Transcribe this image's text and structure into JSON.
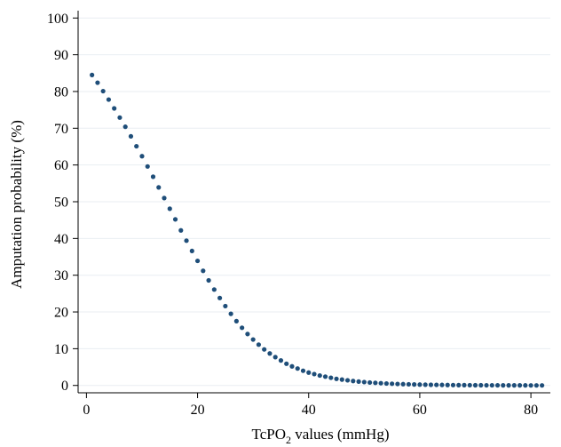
{
  "chart_data": {
    "type": "scatter",
    "xlabel_main": "TcPO",
    "xlabel_sub": "2",
    "xlabel_tail": " values (mmHg)",
    "ylabel": "Amputation probability (%)",
    "xlim": [
      -1.5,
      83.5
    ],
    "ylim": [
      -2,
      102
    ],
    "xticks": [
      0,
      20,
      40,
      60,
      80
    ],
    "yticks": [
      0,
      10,
      20,
      30,
      40,
      50,
      60,
      70,
      80,
      90,
      100
    ],
    "grid": true,
    "marker_color": "#1f4e79",
    "gridline_color": "#e9eef2",
    "series": [
      {
        "points": [
          [
            1,
            84.5
          ],
          [
            2,
            82.4
          ],
          [
            3,
            80.1
          ],
          [
            4,
            77.8
          ],
          [
            5,
            75.4
          ],
          [
            6,
            72.9
          ],
          [
            7,
            70.4
          ],
          [
            8,
            67.8
          ],
          [
            9,
            65.1
          ],
          [
            10,
            62.4
          ],
          [
            11,
            59.6
          ],
          [
            12,
            56.8
          ],
          [
            13,
            53.9
          ],
          [
            14,
            51.0
          ],
          [
            15,
            48.1
          ],
          [
            16,
            45.2
          ],
          [
            17,
            42.2
          ],
          [
            18,
            39.4
          ],
          [
            19,
            36.6
          ],
          [
            20,
            33.9
          ],
          [
            21,
            31.2
          ],
          [
            22,
            28.6
          ],
          [
            23,
            26.1
          ],
          [
            24,
            23.8
          ],
          [
            25,
            21.6
          ],
          [
            26,
            19.5
          ],
          [
            27,
            17.5
          ],
          [
            28,
            15.7
          ],
          [
            29,
            14.0
          ],
          [
            30,
            12.5
          ],
          [
            31,
            11.1
          ],
          [
            32,
            9.8
          ],
          [
            33,
            8.7
          ],
          [
            34,
            7.7
          ],
          [
            35,
            6.8
          ],
          [
            36,
            5.9
          ],
          [
            37,
            5.2
          ],
          [
            38,
            4.6
          ],
          [
            39,
            4.0
          ],
          [
            40,
            3.5
          ],
          [
            41,
            3.1
          ],
          [
            42,
            2.7
          ],
          [
            43,
            2.4
          ],
          [
            44,
            2.1
          ],
          [
            45,
            1.8
          ],
          [
            46,
            1.6
          ],
          [
            47,
            1.4
          ],
          [
            48,
            1.2
          ],
          [
            49,
            1.05
          ],
          [
            50,
            0.92
          ],
          [
            51,
            0.8
          ],
          [
            52,
            0.7
          ],
          [
            53,
            0.61
          ],
          [
            54,
            0.53
          ],
          [
            55,
            0.46
          ],
          [
            56,
            0.4
          ],
          [
            57,
            0.35
          ],
          [
            58,
            0.31
          ],
          [
            59,
            0.27
          ],
          [
            60,
            0.23
          ],
          [
            61,
            0.2
          ],
          [
            62,
            0.18
          ],
          [
            63,
            0.16
          ],
          [
            64,
            0.14
          ],
          [
            65,
            0.12
          ],
          [
            66,
            0.1
          ],
          [
            67,
            0.09
          ],
          [
            68,
            0.08
          ],
          [
            69,
            0.07
          ],
          [
            70,
            0.06
          ],
          [
            71,
            0.05
          ],
          [
            72,
            0.045
          ],
          [
            73,
            0.04
          ],
          [
            74,
            0.035
          ],
          [
            75,
            0.03
          ],
          [
            76,
            0.026
          ],
          [
            77,
            0.023
          ],
          [
            78,
            0.02
          ],
          [
            79,
            0.017
          ],
          [
            80,
            0.015
          ],
          [
            81,
            0.013
          ],
          [
            82,
            0.011
          ]
        ]
      }
    ]
  }
}
